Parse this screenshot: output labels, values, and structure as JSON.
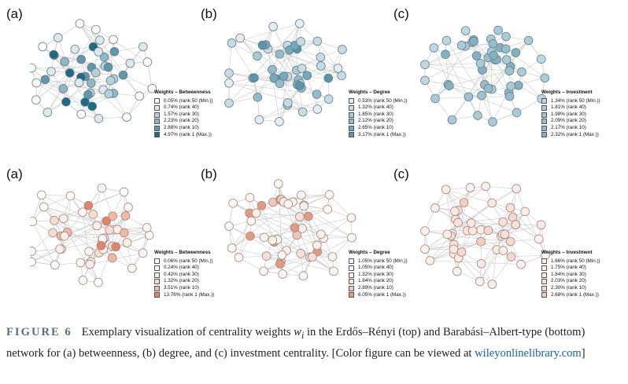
{
  "panels": [
    {
      "label": "(a)",
      "theme": "blue",
      "legend_title": "Weights – Betweenness",
      "legend": [
        "0.05% (rank 50 (Min.))",
        "0.74% (rank 40)",
        "1.57% (rank 30)",
        "2.23% (rank 20)",
        "2.88% (rank 10)",
        "4.97% (rank 1 (Max.))"
      ],
      "legend_colors": [
        "#ffffff",
        "#dbe9ee",
        "#b5d1dc",
        "#8db7c7",
        "#5f98ad",
        "#1f6a85"
      ]
    },
    {
      "label": "(b)",
      "theme": "blue",
      "legend_title": "Weights – Degree",
      "legend": [
        "0.53% (rank 50 (Min.))",
        "1.32% (rank 40)",
        "1.85% (rank 30)",
        "2.12% (rank 20)",
        "2.65% (rank 10)",
        "3.17% (rank 1 (Max.))"
      ],
      "legend_colors": [
        "#e3eef2",
        "#c5dce5",
        "#a8c9d6",
        "#92bccc",
        "#74a8bb",
        "#5a95ab"
      ]
    },
    {
      "label": "(c)",
      "theme": "blue",
      "legend_title": "Weights – Investment",
      "legend": [
        "1.34% (rank 50 (Min.))",
        "1.81% (rank 40)",
        "1.98% (rank 30)",
        "2.09% (rank 20)",
        "2.17% (rank 10)",
        "2.32% (rank 1 (Max.))"
      ],
      "legend_colors": [
        "#bdd8e1",
        "#a9cbd8",
        "#9dc3d1",
        "#95bdcc",
        "#8eb8c8",
        "#84b1c2"
      ]
    },
    {
      "label": "(a)",
      "theme": "red",
      "legend_title": "Weights – Betweenness",
      "legend": [
        "0.06% (rank 50 (Min.))",
        "0.24% (rank 40)",
        "0.42% (rank 30)",
        "1.32% (rank 20)",
        "3.51% (rank 10)",
        "13.76% (rank 1 (Max.))"
      ],
      "legend_colors": [
        "#ffffff",
        "#fdf6f3",
        "#fbeee8",
        "#f7dcd1",
        "#efb9a6",
        "#e0846a"
      ]
    },
    {
      "label": "(b)",
      "theme": "red",
      "legend_title": "Weights – Degree",
      "legend": [
        "1.05% (rank 50 (Min.))",
        "1.05% (rank 40)",
        "1.32% (rank 30)",
        "1.84% (rank 20)",
        "2.89% (rank 10)",
        "6.05% (rank 1 (Max.))"
      ],
      "legend_colors": [
        "#fdf5f2",
        "#fdf5f2",
        "#fbeee8",
        "#f7e0d7",
        "#f1c8b8",
        "#e49a81"
      ]
    },
    {
      "label": "(c)",
      "theme": "red",
      "legend_title": "Weights – Investment",
      "legend": [
        "1.66% (rank 50 (Min.))",
        "1.75% (rank 40)",
        "1.84% (rank 30)",
        "2.03% (rank 20)",
        "2.30% (rank 10)",
        "2.68% (rank 1 (Max.))"
      ],
      "legend_colors": [
        "#fcf1ed",
        "#fbece6",
        "#fae8e1",
        "#f8e1d8",
        "#f6d8cc",
        "#f3cdbe"
      ]
    }
  ],
  "caption": {
    "figure_label": "FIGURE 6",
    "text_1": "Exemplary visualization of centrality weights ",
    "symbol": "w",
    "subscript": "i",
    "text_2": " in the Erdős–Rényi (top) and Barabási–Albert-type (bottom) network for (a) betweenness, (b) degree, and (c) investment centrality. [Color figure can be viewed at ",
    "link": "wileyonlinelibrary.com",
    "text_3": "]"
  },
  "colors": {
    "edge": "#c9c9c9",
    "node_stroke_blue": "#6b7f88",
    "node_stroke_red": "#a08a84"
  }
}
